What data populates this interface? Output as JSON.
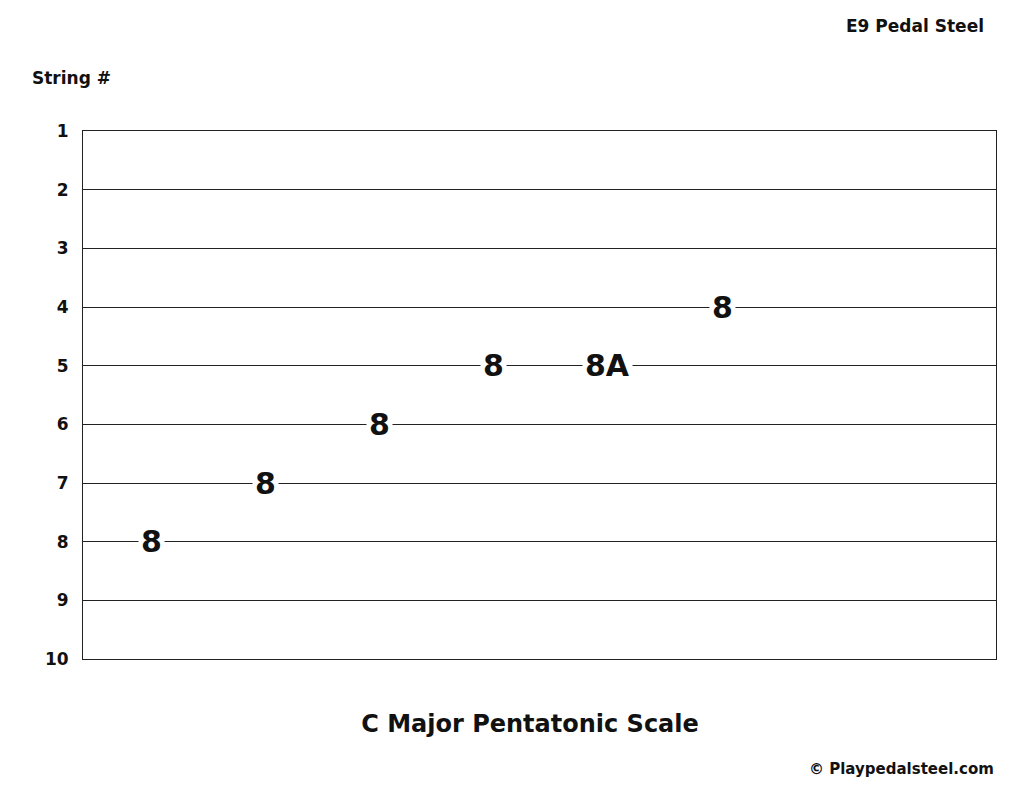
{
  "chart_data": {
    "type": "scatter",
    "title": "C Major Pentatonic Scale",
    "annotations": [
      "E9 Pedal Steel",
      "© Playpedalsteel.com"
    ],
    "y_label": "String #",
    "x": [
      1,
      2,
      3,
      4,
      5,
      6
    ],
    "values": [
      8,
      7,
      6,
      5,
      5,
      4
    ],
    "tab": [
      "8",
      "8",
      "8",
      "8",
      "8A",
      "8"
    ],
    "xlim": [
      0.4,
      8.4
    ],
    "ylim": [
      10,
      1
    ],
    "yticks": [
      1,
      2,
      3,
      4,
      5,
      6,
      7,
      8,
      9,
      10
    ],
    "grid": true,
    "tick_labels": "y"
  }
}
